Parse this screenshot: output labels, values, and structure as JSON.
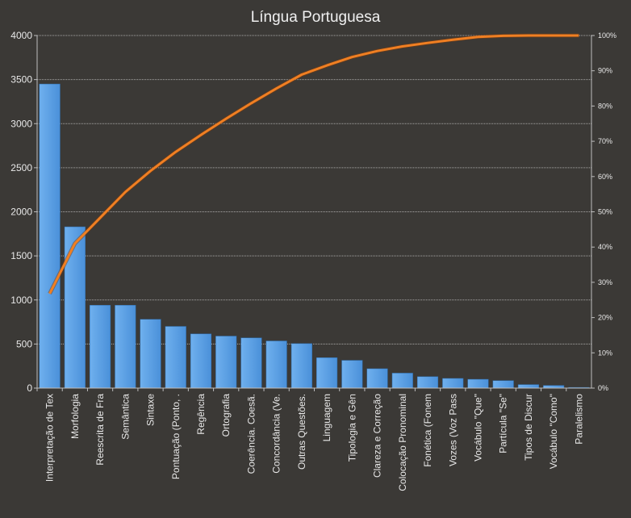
{
  "chart_data": {
    "type": "bar",
    "title": "Língua Portuguesa",
    "xlabel": "",
    "ylabel": "",
    "ylim": [
      0,
      4000
    ],
    "y_ticks": [
      0,
      500,
      1000,
      1500,
      2000,
      2500,
      3000,
      3500,
      4000
    ],
    "y2lim": [
      0,
      100
    ],
    "y2_ticks": [
      "0%",
      "10%",
      "20%",
      "30%",
      "40%",
      "50%",
      "60%",
      "70%",
      "80%",
      "90%",
      "100%"
    ],
    "grid": true,
    "categories": [
      "Interpretação de Tex",
      "Morfologia",
      "Reescrita de Fra",
      "Semântica",
      "Sintaxe",
      "Pontuação (Ponto, .",
      "Regência",
      "Ortografia",
      "Coerência. Coesã.",
      "Concordância (Ve.",
      "Outras Questões.",
      "Linguagem",
      "Tipologia e Gên",
      "Clareza e Correção",
      "Colocação Pronominal",
      "Fonética (Fonem",
      "Vozes (Voz Pass",
      "Vocábulo \"Que\"",
      "Partícula \"Se\"",
      "Tipos de Discur",
      "Vocábulo \"Como\"",
      "Paralelismo"
    ],
    "series": [
      {
        "type": "bar",
        "axis": "left",
        "color": "#4a90d9",
        "values": [
          3450,
          1830,
          940,
          940,
          780,
          700,
          615,
          590,
          570,
          535,
          505,
          345,
          315,
          220,
          170,
          130,
          110,
          100,
          85,
          40,
          30,
          8
        ]
      },
      {
        "type": "line",
        "axis": "right",
        "color": "#f07f22",
        "values": [
          26.8,
          41.0,
          48.3,
          55.6,
          61.6,
          67.0,
          71.8,
          76.4,
          80.8,
          85.0,
          88.9,
          91.5,
          93.9,
          95.6,
          96.9,
          97.9,
          98.8,
          99.6,
          99.9,
          100.0,
          100.0,
          100.0
        ]
      }
    ]
  }
}
